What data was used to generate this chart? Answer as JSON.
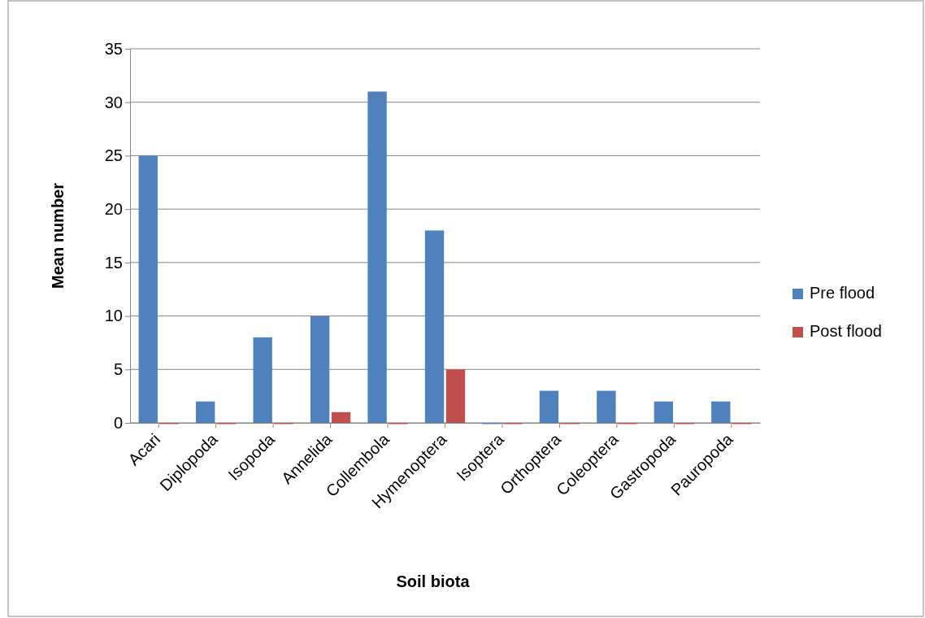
{
  "chart_data": {
    "type": "bar",
    "xlabel": "Soil biota",
    "ylabel": "Mean number",
    "categories": [
      "Acari",
      "Diplopoda",
      "Isopoda",
      "Annelida",
      "Collembola",
      "Hymenoptera",
      "Isoptera",
      "Orthoptera",
      "Coleoptera",
      "Gastropoda",
      "Pauropoda"
    ],
    "series": [
      {
        "name": "Pre flood",
        "color": "#4f81bd",
        "values": [
          25,
          2,
          8,
          10,
          31,
          18,
          0,
          3,
          3,
          2,
          2
        ]
      },
      {
        "name": "Post flood",
        "color": "#c0504d",
        "values": [
          0,
          0,
          0,
          1,
          0,
          5,
          0,
          0,
          0,
          0,
          0
        ]
      }
    ],
    "ylim": [
      0,
      35
    ],
    "yticks": [
      0,
      5,
      10,
      15,
      20,
      25,
      30,
      35
    ],
    "grid": "y",
    "legend": "right"
  }
}
